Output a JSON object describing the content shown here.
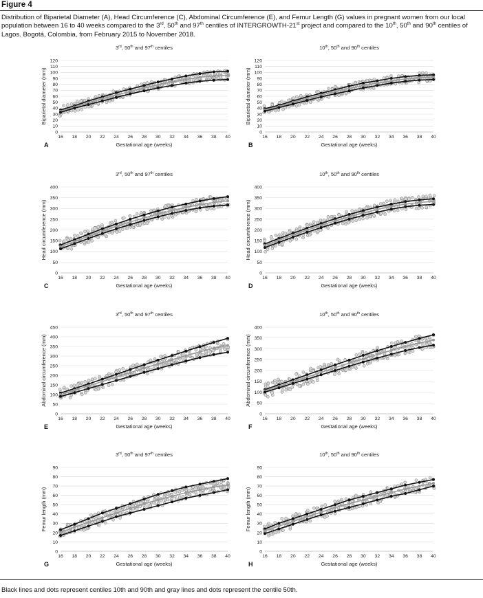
{
  "figure": {
    "label": "Figure 4",
    "caption": "Distribution of Biparietal Diameter (A), Head Circumference (C), Abdominal Circumference (E), and Femur Length (G) values in pregnant women from our local population between 16 to 40 weeks compared to the 3rd, 50th and 97th centiles of INTERGROWTH-21st project and compared to the 10th, 50th and 90th centiles of Lagos. Bogotá, Colombia, from February 2015 to November 2018.",
    "footnote": "Black lines and dots represent centiles 10th and 90th and gray lines and dots represent the centile 50th."
  },
  "colors": {
    "outer": "#111111",
    "median": "#9a9a9a",
    "observed_fill": "#d9d9d9",
    "observed_stroke": "#8c8c8c",
    "grid": "#d8d8d8"
  },
  "chart_data": [
    {
      "id": "A",
      "type": "line",
      "title": "3rd, 50th and 97th centiles",
      "xlabel": "Gestational age (weeks)",
      "ylabel": "Biparietal diameter (mm)",
      "xlim": [
        16,
        40
      ],
      "ylim": [
        0,
        120
      ],
      "yticks": [
        0,
        10,
        20,
        30,
        40,
        50,
        60,
        70,
        80,
        90,
        100,
        110,
        120
      ],
      "xticks": [
        16,
        18,
        20,
        22,
        24,
        26,
        28,
        30,
        32,
        34,
        36,
        38,
        40
      ],
      "x": [
        16,
        18,
        20,
        22,
        24,
        26,
        28,
        30,
        32,
        34,
        36,
        38,
        40
      ],
      "series": [
        {
          "role": "upper",
          "values": [
            37,
            44,
            52,
            59,
            66,
            72,
            78,
            84,
            89,
            94,
            98,
            101,
            102
          ]
        },
        {
          "role": "median",
          "values": [
            35,
            42,
            49,
            56,
            62,
            68,
            74,
            79,
            84,
            88,
            92,
            94,
            95
          ]
        },
        {
          "role": "lower",
          "values": [
            33,
            40,
            46,
            52,
            58,
            64,
            69,
            74,
            78,
            82,
            85,
            87,
            88
          ]
        }
      ],
      "spread": 8
    },
    {
      "id": "B",
      "type": "line",
      "title": "10th, 50th and 90th centiles",
      "xlabel": "Gestational age (weeks)",
      "ylabel": "Biparietal diameter (mm)",
      "xlim": [
        16,
        40
      ],
      "ylim": [
        0,
        120
      ],
      "yticks": [
        0,
        10,
        20,
        30,
        40,
        50,
        60,
        70,
        80,
        90,
        100,
        110,
        120
      ],
      "xticks": [
        16,
        18,
        20,
        22,
        24,
        26,
        28,
        30,
        32,
        34,
        36,
        38,
        40
      ],
      "x": [
        16,
        18,
        20,
        22,
        24,
        26,
        28,
        30,
        32,
        34,
        36,
        38,
        40
      ],
      "series": [
        {
          "role": "upper",
          "values": [
            39,
            45,
            52,
            59,
            65,
            71,
            77,
            82,
            86,
            90,
            93,
            95,
            96
          ]
        },
        {
          "role": "median",
          "values": [
            37,
            43,
            50,
            56,
            62,
            68,
            73,
            78,
            82,
            86,
            89,
            91,
            92
          ]
        },
        {
          "role": "lower",
          "values": [
            35,
            41,
            47,
            53,
            59,
            64,
            69,
            74,
            78,
            82,
            85,
            87,
            88
          ]
        }
      ],
      "spread": 8
    },
    {
      "id": "C",
      "type": "line",
      "title": "3rd, 50th and 97th centiles",
      "xlabel": "Gestational age (weeks)",
      "ylabel": "Head circumference (mm)",
      "xlim": [
        16,
        40
      ],
      "ylim": [
        0,
        400
      ],
      "yticks": [
        0,
        50,
        100,
        150,
        200,
        250,
        300,
        350,
        400
      ],
      "xticks": [
        16,
        18,
        20,
        22,
        24,
        26,
        28,
        30,
        32,
        34,
        36,
        38,
        40
      ],
      "x": [
        16,
        18,
        20,
        22,
        24,
        26,
        28,
        30,
        32,
        34,
        36,
        38,
        40
      ],
      "series": [
        {
          "role": "upper",
          "values": [
            130,
            155,
            180,
            205,
            228,
            250,
            270,
            289,
            306,
            321,
            335,
            346,
            355
          ]
        },
        {
          "role": "median",
          "values": [
            122,
            146,
            170,
            194,
            216,
            237,
            256,
            274,
            290,
            305,
            318,
            328,
            335
          ]
        },
        {
          "role": "lower",
          "values": [
            112,
            136,
            160,
            183,
            205,
            225,
            244,
            261,
            277,
            291,
            303,
            311,
            316
          ]
        }
      ],
      "spread": 30
    },
    {
      "id": "D",
      "type": "line",
      "title": "10th, 50th and 90th centiles",
      "xlabel": "Gestational age (weeks)",
      "ylabel": "Head circumference (mm)",
      "xlim": [
        16,
        40
      ],
      "ylim": [
        0,
        400
      ],
      "yticks": [
        0,
        50,
        100,
        150,
        200,
        250,
        300,
        350,
        400
      ],
      "xticks": [
        16,
        18,
        20,
        22,
        24,
        26,
        28,
        30,
        32,
        34,
        36,
        38,
        40
      ],
      "x": [
        16,
        18,
        20,
        22,
        24,
        26,
        28,
        30,
        32,
        34,
        36,
        38,
        40
      ],
      "series": [
        {
          "role": "upper",
          "values": [
            135,
            160,
            185,
            208,
            230,
            252,
            272,
            290,
            306,
            320,
            332,
            340,
            345
          ]
        },
        {
          "role": "median",
          "values": [
            128,
            152,
            176,
            199,
            221,
            242,
            261,
            279,
            295,
            309,
            320,
            328,
            333
          ]
        },
        {
          "role": "lower",
          "values": [
            118,
            142,
            166,
            189,
            211,
            231,
            250,
            268,
            283,
            297,
            308,
            315,
            318
          ]
        }
      ],
      "spread": 30
    },
    {
      "id": "E",
      "type": "line",
      "title": "3rd, 50th and 97th centiles",
      "xlabel": "Gestational age (weeks)",
      "ylabel": "Abdominal circumference (mm)",
      "xlim": [
        16,
        40
      ],
      "ylim": [
        0,
        450
      ],
      "yticks": [
        0,
        50,
        100,
        150,
        200,
        250,
        300,
        350,
        400,
        450
      ],
      "xticks": [
        16,
        18,
        20,
        22,
        24,
        26,
        28,
        30,
        32,
        34,
        36,
        38,
        40
      ],
      "x": [
        16,
        18,
        20,
        22,
        24,
        26,
        28,
        30,
        32,
        34,
        36,
        38,
        40
      ],
      "series": [
        {
          "role": "upper",
          "values": [
            108,
            131,
            155,
            180,
            205,
            230,
            255,
            279,
            303,
            326,
            349,
            371,
            392
          ]
        },
        {
          "role": "median",
          "values": [
            100,
            122,
            145,
            168,
            191,
            214,
            237,
            259,
            281,
            302,
            322,
            341,
            355
          ]
        },
        {
          "role": "lower",
          "values": [
            90,
            110,
            131,
            152,
            173,
            194,
            215,
            235,
            255,
            274,
            292,
            308,
            320
          ]
        }
      ],
      "spread": 34
    },
    {
      "id": "F",
      "type": "line",
      "title": "10th, 50th and 90th centiles",
      "xlabel": "Gestational age (weeks)",
      "ylabel": "Abdominal circumference (mm)",
      "xlim": [
        16,
        40
      ],
      "ylim": [
        0,
        400
      ],
      "yticks": [
        0,
        50,
        100,
        150,
        200,
        250,
        300,
        350,
        400
      ],
      "xticks": [
        16,
        18,
        20,
        22,
        24,
        26,
        28,
        30,
        32,
        34,
        36,
        38,
        40
      ],
      "x": [
        16,
        18,
        20,
        22,
        24,
        26,
        28,
        30,
        32,
        34,
        36,
        38,
        40
      ],
      "series": [
        {
          "role": "upper",
          "values": [
            112,
            134,
            157,
            180,
            203,
            226,
            248,
            270,
            291,
            311,
            330,
            348,
            365
          ]
        },
        {
          "role": "median",
          "values": [
            106,
            127,
            148,
            170,
            191,
            213,
            234,
            254,
            274,
            293,
            311,
            327,
            341
          ]
        },
        {
          "role": "lower",
          "values": [
            100,
            120,
            140,
            160,
            180,
            200,
            220,
            239,
            257,
            275,
            292,
            306,
            317
          ]
        }
      ],
      "spread": 34
    },
    {
      "id": "G",
      "type": "line",
      "title": "3rd, 50th and 97th centiles",
      "xlabel": "Gestational age (weeks)",
      "ylabel": "Femur length (mm)",
      "xlim": [
        16,
        40
      ],
      "ylim": [
        0,
        90
      ],
      "yticks": [
        0,
        10,
        20,
        30,
        40,
        50,
        60,
        70,
        80,
        90
      ],
      "xticks": [
        16,
        18,
        20,
        22,
        24,
        26,
        28,
        30,
        32,
        34,
        36,
        38,
        40
      ],
      "x": [
        16,
        18,
        20,
        22,
        24,
        26,
        28,
        30,
        32,
        34,
        36,
        38,
        40
      ],
      "series": [
        {
          "role": "upper",
          "values": [
            23,
            29,
            35,
            41,
            46,
            51,
            56,
            61,
            65,
            69,
            72,
            75,
            78
          ]
        },
        {
          "role": "median",
          "values": [
            20,
            26,
            31,
            36,
            41,
            46,
            51,
            55,
            59,
            63,
            66,
            69,
            71
          ]
        },
        {
          "role": "lower",
          "values": [
            17,
            22,
            27,
            32,
            37,
            41,
            45,
            49,
            53,
            57,
            60,
            63,
            66
          ]
        }
      ],
      "spread": 7
    },
    {
      "id": "H",
      "type": "line",
      "title": "10th, 50th and 90th centiles",
      "xlabel": "Gestational age (weeks)",
      "ylabel": "Femur length (mm)",
      "xlim": [
        16,
        40
      ],
      "ylim": [
        0,
        90
      ],
      "yticks": [
        0,
        10,
        20,
        30,
        40,
        50,
        60,
        70,
        80,
        90
      ],
      "xticks": [
        16,
        18,
        20,
        22,
        24,
        26,
        28,
        30,
        32,
        34,
        36,
        38,
        40
      ],
      "x": [
        16,
        18,
        20,
        22,
        24,
        26,
        28,
        30,
        32,
        34,
        36,
        38,
        40
      ],
      "series": [
        {
          "role": "upper",
          "values": [
            24,
            30,
            35,
            40,
            45,
            50,
            55,
            59,
            63,
            67,
            71,
            74,
            77
          ]
        },
        {
          "role": "median",
          "values": [
            22,
            27,
            32,
            37,
            42,
            47,
            51,
            55,
            59,
            63,
            67,
            70,
            73
          ]
        },
        {
          "role": "lower",
          "values": [
            19,
            24,
            29,
            34,
            39,
            43,
            47,
            51,
            55,
            59,
            62,
            66,
            70
          ]
        }
      ],
      "spread": 7
    }
  ]
}
